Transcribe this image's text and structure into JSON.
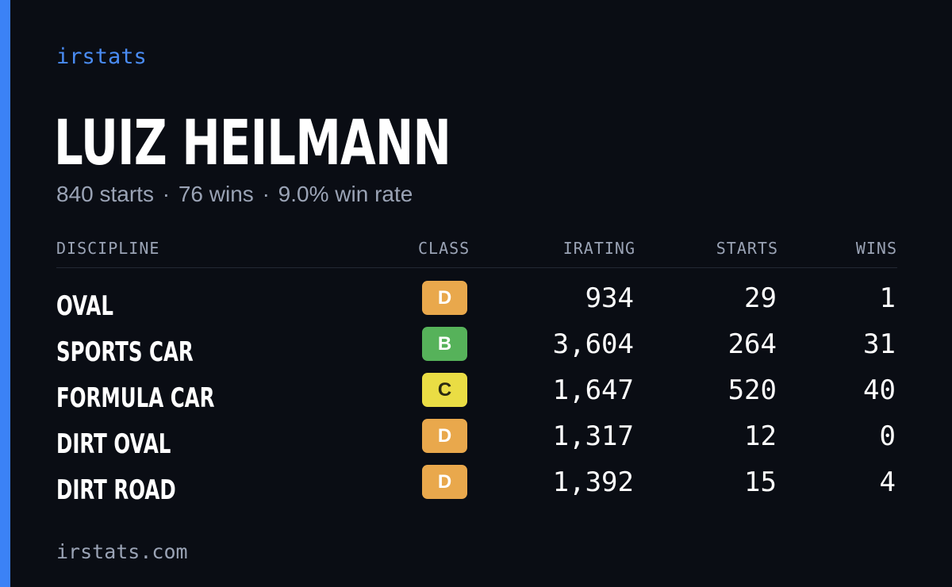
{
  "brand": "irstats",
  "driver": {
    "name": "LUIZ HEILMANN",
    "starts_text": "840 starts",
    "wins_text": "76 wins",
    "win_rate_text": "9.0% win rate",
    "separator": "·"
  },
  "table": {
    "headers": {
      "discipline": "DISCIPLINE",
      "class": "CLASS",
      "irating": "IRATING",
      "starts": "STARTS",
      "wins": "WINS"
    },
    "rows": [
      {
        "discipline": "OVAL",
        "class": "D",
        "irating": "934",
        "starts": "29",
        "wins": "1"
      },
      {
        "discipline": "SPORTS CAR",
        "class": "B",
        "irating": "3,604",
        "starts": "264",
        "wins": "31"
      },
      {
        "discipline": "FORMULA CAR",
        "class": "C",
        "irating": "1,647",
        "starts": "520",
        "wins": "40"
      },
      {
        "discipline": "DIRT OVAL",
        "class": "D",
        "irating": "1,317",
        "starts": "12",
        "wins": "0"
      },
      {
        "discipline": "DIRT ROAD",
        "class": "D",
        "irating": "1,392",
        "starts": "15",
        "wins": "4"
      }
    ]
  },
  "class_colors": {
    "B": "#56b25a",
    "C": "#eadd44",
    "D": "#e9a84c"
  },
  "colors": {
    "accent": "#3b82f6",
    "background": "#0a0d14",
    "muted_text": "#9aa3b5"
  },
  "footer": "irstats.com"
}
